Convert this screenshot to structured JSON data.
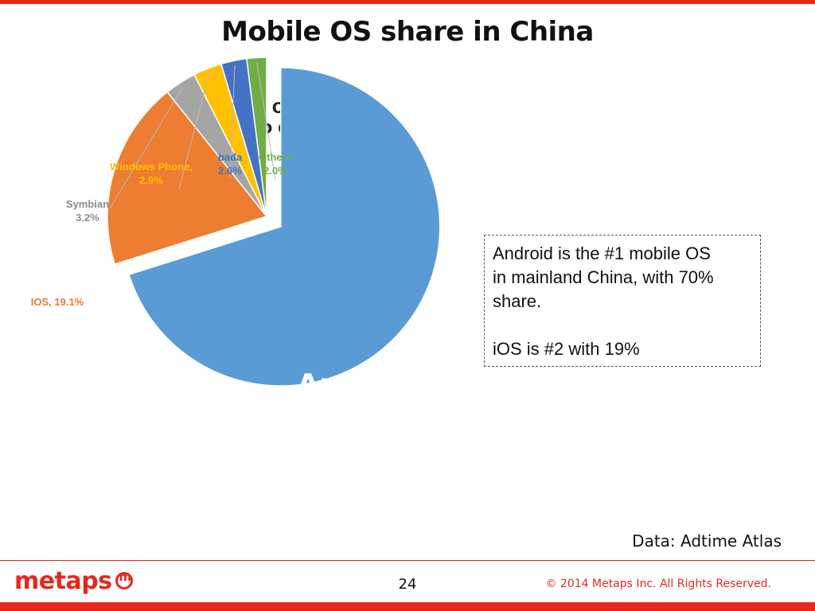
{
  "slide": {
    "title": "Mobile OS share in China",
    "callout": {
      "line1": "Android is the #1 mobile OS",
      "line2": "in mainland China, with 70%",
      "line3": "share.",
      "line4": "iOS is #2 with 19%"
    },
    "source": "Data: Adtime Atlas",
    "logo_text": "metaps",
    "page_number": "24",
    "copyright": "© 2014 Metaps Inc. All Rights Reserved."
  },
  "chart_data": {
    "type": "pie",
    "title_lines": [
      "2014  MOBILE OS SHARE",
      "MAINLAND CHINA"
    ],
    "slices": [
      {
        "name": "Android",
        "value": 70,
        "color": "#5b9bd5",
        "exploded": true,
        "label_lines": [
          "Android",
          "70%"
        ]
      },
      {
        "name": "IOS",
        "value": 19.1,
        "color": "#ed7d31",
        "label_lines": [
          "IOS, 19.1%"
        ]
      },
      {
        "name": "Symbian",
        "value": 3.2,
        "color": "#a5a5a5",
        "label_lines": [
          "Symbian",
          "3.2%"
        ]
      },
      {
        "name": "Windows Phone",
        "value": 2.9,
        "color": "#ffc000",
        "label_lines": [
          "Windows Phone,",
          "2.9%"
        ]
      },
      {
        "name": "bada",
        "value": 2.6,
        "color": "#4472c4",
        "label_lines": [
          "bada",
          "2.6%"
        ]
      },
      {
        "name": "Others",
        "value": 2.0,
        "color": "#70ad47",
        "label_lines": [
          "Others",
          "2.0%"
        ]
      }
    ]
  }
}
